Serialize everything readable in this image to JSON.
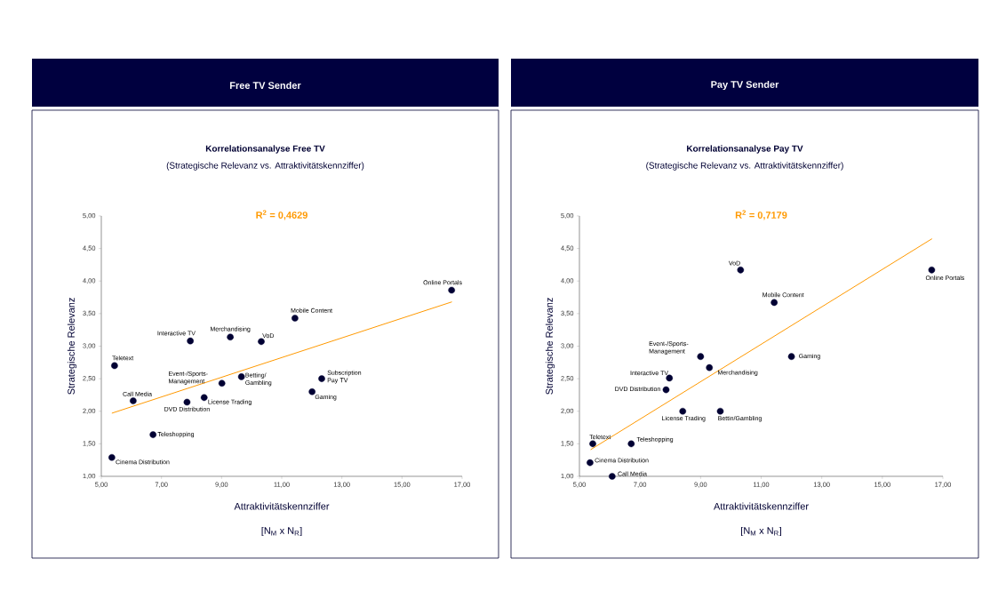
{
  "chart_data": [
    {
      "type": "scatter",
      "title": "Free TV Sender",
      "subtitle": "Korrelationsanalyse Free TV",
      "xlabel": "Attraktivitätskennziffer",
      "ylabel": "Strategische Relevanz",
      "xlim": [
        5,
        17
      ],
      "ylim": [
        1,
        5
      ],
      "xticks": [
        {
          "value": 5,
          "label": "5,00"
        },
        {
          "value": 7,
          "label": "7,00"
        },
        {
          "value": 9,
          "label": "9,00"
        },
        {
          "value": 11,
          "label": "11,00"
        },
        {
          "value": 13,
          "label": "13,00"
        },
        {
          "value": 15,
          "label": "15,00"
        },
        {
          "value": 17,
          "label": "17,00"
        }
      ],
      "yticks": [
        {
          "value": 1,
          "label": "1,00"
        },
        {
          "value": 1.5,
          "label": "1,50"
        },
        {
          "value": 2,
          "label": "2,00"
        },
        {
          "value": 2.5,
          "label": "2,50"
        },
        {
          "value": 3,
          "label": "3,00"
        },
        {
          "value": 3.5,
          "label": "3,50"
        },
        {
          "value": 4,
          "label": "4,00"
        },
        {
          "value": 4.5,
          "label": "4,50"
        },
        {
          "value": 5,
          "label": "5,00"
        }
      ],
      "series": [
        {
          "color": "#000033",
          "x": [
            5.35,
            6.72,
            6.06,
            7.85,
            8.42,
            5.44,
            7.96,
            9.01,
            9.29,
            9.66,
            10.32,
            11.44,
            12.01,
            12.33,
            16.65
          ],
          "values": [
            1.29,
            1.64,
            2.16,
            2.14,
            2.21,
            2.7,
            3.08,
            2.43,
            3.14,
            2.53,
            3.07,
            3.43,
            2.3,
            2.5,
            3.86
          ]
        },
        {
          "type": "line",
          "color": "#ff9900",
          "x": [
            5.35,
            16.66
          ],
          "values": [
            1.97,
            3.68
          ]
        }
      ],
      "annotations": [
        "(Strategische Relevanz vs. Attraktivitätskennziffer)",
        "R$^{2}$ = 0,4629",
        "[N$_{M}$ x N$_{R}$]",
        {
          "text": "Cinema Distribution",
          "x": 5.35,
          "y": 1.29
        },
        {
          "text": "Teleshopping",
          "x": 6.72,
          "y": 1.64
        },
        {
          "text": "Call Media",
          "x": 6.06,
          "y": 2.16
        },
        {
          "text": "DVD Distribution",
          "x": 7.85,
          "y": 2.14
        },
        {
          "text": "License Trading",
          "x": 8.42,
          "y": 2.21
        },
        {
          "text": "Teletext",
          "x": 5.44,
          "y": 2.7
        },
        {
          "text": "Interactive TV",
          "x": 7.96,
          "y": 3.08
        },
        {
          "text": "Event-/Sports-Management",
          "x": 9.01,
          "y": 2.43
        },
        {
          "text": "Merchandising",
          "x": 9.29,
          "y": 3.14
        },
        {
          "text": "Betting/ Gambling",
          "x": 9.66,
          "y": 2.53
        },
        {
          "text": "VoD",
          "x": 10.32,
          "y": 3.07
        },
        {
          "text": "Mobile Content",
          "x": 11.44,
          "y": 3.43
        },
        {
          "text": "Gaming",
          "x": 12.01,
          "y": 2.3
        },
        {
          "text": "Subscription Pay TV",
          "x": 12.33,
          "y": 2.5
        },
        {
          "text": "Online Portals",
          "x": 16.65,
          "y": 3.86
        }
      ]
    },
    {
      "type": "scatter",
      "title": "Pay TV Sender",
      "subtitle": "Korrelationsanalyse Pay TV",
      "xlabel": "Attraktivitätskennziffer",
      "ylabel": "Strategische Relevanz",
      "xlim": [
        5,
        17
      ],
      "ylim": [
        1,
        5
      ],
      "xticks": [
        {
          "value": 5,
          "label": "5,00"
        },
        {
          "value": 7,
          "label": "7,00"
        },
        {
          "value": 9,
          "label": "9,00"
        },
        {
          "value": 11,
          "label": "11,00"
        },
        {
          "value": 13,
          "label": "13,00"
        },
        {
          "value": 15,
          "label": "15,00"
        },
        {
          "value": 17,
          "label": "17,00"
        }
      ],
      "yticks": [
        {
          "value": 1,
          "label": "1,00"
        },
        {
          "value": 1.5,
          "label": "1,50"
        },
        {
          "value": 2,
          "label": "2,00"
        },
        {
          "value": 2.5,
          "label": "2,50"
        },
        {
          "value": 3,
          "label": "3,00"
        },
        {
          "value": 3.5,
          "label": "3,50"
        },
        {
          "value": 4,
          "label": "4,00"
        },
        {
          "value": 4.5,
          "label": "4,50"
        },
        {
          "value": 5,
          "label": "5,00"
        }
      ],
      "series": [
        {
          "color": "#000033",
          "x": [
            6.08,
            5.35,
            5.44,
            6.71,
            7.86,
            7.97,
            8.41,
            9.65,
            9.0,
            9.29,
            10.32,
            11.43,
            12.0,
            16.63
          ],
          "values": [
            1.0,
            1.21,
            1.5,
            1.5,
            2.33,
            2.51,
            2.0,
            2.0,
            2.84,
            2.67,
            4.17,
            3.67,
            2.84,
            4.17
          ]
        },
        {
          "type": "line",
          "color": "#ff9900",
          "x": [
            5.37,
            16.64
          ],
          "values": [
            1.41,
            4.65
          ]
        }
      ],
      "annotations": [
        "(Strategische Relevanz vs. Attraktivitätskennziffer)",
        "R$^{2}$ = 0,7179",
        "[N$_{M}$ x N$_{R}$]",
        {
          "text": "Call Media",
          "x": 6.08,
          "y": 1.0
        },
        {
          "text": "Cinema Distribution",
          "x": 5.35,
          "y": 1.21
        },
        {
          "text": "Teletext",
          "x": 5.44,
          "y": 1.5
        },
        {
          "text": "Teleshopping",
          "x": 6.71,
          "y": 1.5
        },
        {
          "text": "DVD Distribution",
          "x": 7.86,
          "y": 2.33
        },
        {
          "text": "Interactive TV",
          "x": 7.97,
          "y": 2.51
        },
        {
          "text": "License Trading",
          "x": 8.41,
          "y": 2.0
        },
        {
          "text": "Bettin/Gambling",
          "x": 9.65,
          "y": 2.0
        },
        {
          "text": "Event-/Sports-Management",
          "x": 9.0,
          "y": 2.84
        },
        {
          "text": "Merchandising",
          "x": 9.29,
          "y": 2.67
        },
        {
          "text": "VoD",
          "x": 10.32,
          "y": 4.17
        },
        {
          "text": "Mobile Content",
          "x": 11.43,
          "y": 3.67
        },
        {
          "text": "Gaming",
          "x": 12.0,
          "y": 2.84
        },
        {
          "text": "Online Portals",
          "x": 16.63,
          "y": 4.17
        }
      ]
    }
  ]
}
